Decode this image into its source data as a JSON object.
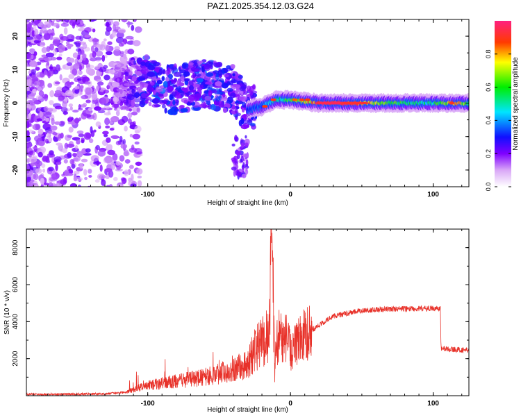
{
  "title": "PAZ1.2025.354.12.03.G24",
  "chart_data": [
    {
      "type": "heatmap",
      "title": "PAZ1.2025.354.12.03.G24",
      "xlabel": "Height of straight line (km)",
      "ylabel": "Frequency (Hz)",
      "xlim": [
        -185,
        125
      ],
      "ylim": [
        -25,
        25
      ],
      "xticks": [
        -100,
        0,
        100
      ],
      "xtick_labels": [
        "-100",
        "0",
        "100"
      ],
      "yticks": [
        -20,
        -10,
        0,
        10,
        20
      ],
      "ytick_labels": [
        "-20",
        "-10",
        "0",
        "10",
        "20"
      ],
      "colorbar": {
        "label": "Normalized spectral amplitude",
        "range": [
          0,
          1
        ],
        "ticks": [
          0.0,
          0.2,
          0.4,
          0.6,
          0.8
        ],
        "tick_labels": [
          "0.0",
          "0.2",
          "0.4",
          "0.6",
          "0.8"
        ],
        "colormap": "rainbow"
      },
      "ridge": [
        {
          "x": -185,
          "freq": 8,
          "amp": 0.12
        },
        {
          "x": -150,
          "freq": 6,
          "amp": 0.15
        },
        {
          "x": -120,
          "freq": 5,
          "amp": 0.18
        },
        {
          "x": -100,
          "freq": 7,
          "amp": 0.3
        },
        {
          "x": -90,
          "freq": 5,
          "amp": 0.32
        },
        {
          "x": -80,
          "freq": 4,
          "amp": 0.3
        },
        {
          "x": -70,
          "freq": 5,
          "amp": 0.28
        },
        {
          "x": -60,
          "freq": 6,
          "amp": 0.33
        },
        {
          "x": -50,
          "freq": 5,
          "amp": 0.3
        },
        {
          "x": -40,
          "freq": 4,
          "amp": 0.28
        },
        {
          "x": -30,
          "freq": -2,
          "amp": 0.27
        },
        {
          "x": -20,
          "freq": -1,
          "amp": 0.35
        },
        {
          "x": -10,
          "freq": 1,
          "amp": 0.5
        },
        {
          "x": 0,
          "freq": 1,
          "amp": 0.6
        },
        {
          "x": 10,
          "freq": 0.5,
          "amp": 0.75
        },
        {
          "x": 20,
          "freq": 0,
          "amp": 0.9
        },
        {
          "x": 40,
          "freq": 0,
          "amp": 0.95
        },
        {
          "x": 60,
          "freq": 0,
          "amp": 0.7
        },
        {
          "x": 80,
          "freq": 0,
          "amp": 0.55
        },
        {
          "x": 100,
          "freq": 0,
          "amp": 0.5
        },
        {
          "x": 115,
          "freq": 0,
          "amp": 0.85
        },
        {
          "x": 125,
          "freq": 0,
          "amp": 0.55
        }
      ]
    },
    {
      "type": "line",
      "xlabel": "Height of straight line (km)",
      "ylabel": "SNR (10 * v/v)",
      "xlim": [
        -185,
        125
      ],
      "ylim": [
        0,
        9000
      ],
      "xticks": [
        -100,
        0,
        100
      ],
      "xtick_labels": [
        "-100",
        "0",
        "100"
      ],
      "yticks": [
        2000,
        4000,
        6000,
        8000
      ],
      "ytick_labels": [
        "2000",
        "4000",
        "6000",
        "8000"
      ],
      "series": [
        {
          "name": "SNR",
          "color": "#e8322a",
          "points": [
            [
              -185,
              80
            ],
            [
              -160,
              80
            ],
            [
              -130,
              100
            ],
            [
              -115,
              200
            ],
            [
              -100,
              500
            ],
            [
              -90,
              600
            ],
            [
              -80,
              700
            ],
            [
              -70,
              800
            ],
            [
              -60,
              900
            ],
            [
              -50,
              1100
            ],
            [
              -40,
              1300
            ],
            [
              -30,
              1500
            ],
            [
              -25,
              2200
            ],
            [
              -20,
              2600
            ],
            [
              -15,
              3000
            ],
            [
              -13,
              9000
            ],
            [
              -11,
              1200
            ],
            [
              -10,
              2600
            ],
            [
              -8,
              3400
            ],
            [
              -5,
              3000
            ],
            [
              -2,
              3200
            ],
            [
              0,
              2300
            ],
            [
              5,
              2900
            ],
            [
              10,
              3300
            ],
            [
              20,
              3800
            ],
            [
              30,
              4300
            ],
            [
              40,
              4450
            ],
            [
              50,
              4600
            ],
            [
              60,
              4650
            ],
            [
              70,
              4680
            ],
            [
              80,
              4700
            ],
            [
              90,
              4700
            ],
            [
              100,
              4720
            ],
            [
              105,
              4700
            ],
            [
              105.5,
              2550
            ],
            [
              115,
              2500
            ],
            [
              125,
              2450
            ]
          ]
        }
      ]
    }
  ]
}
